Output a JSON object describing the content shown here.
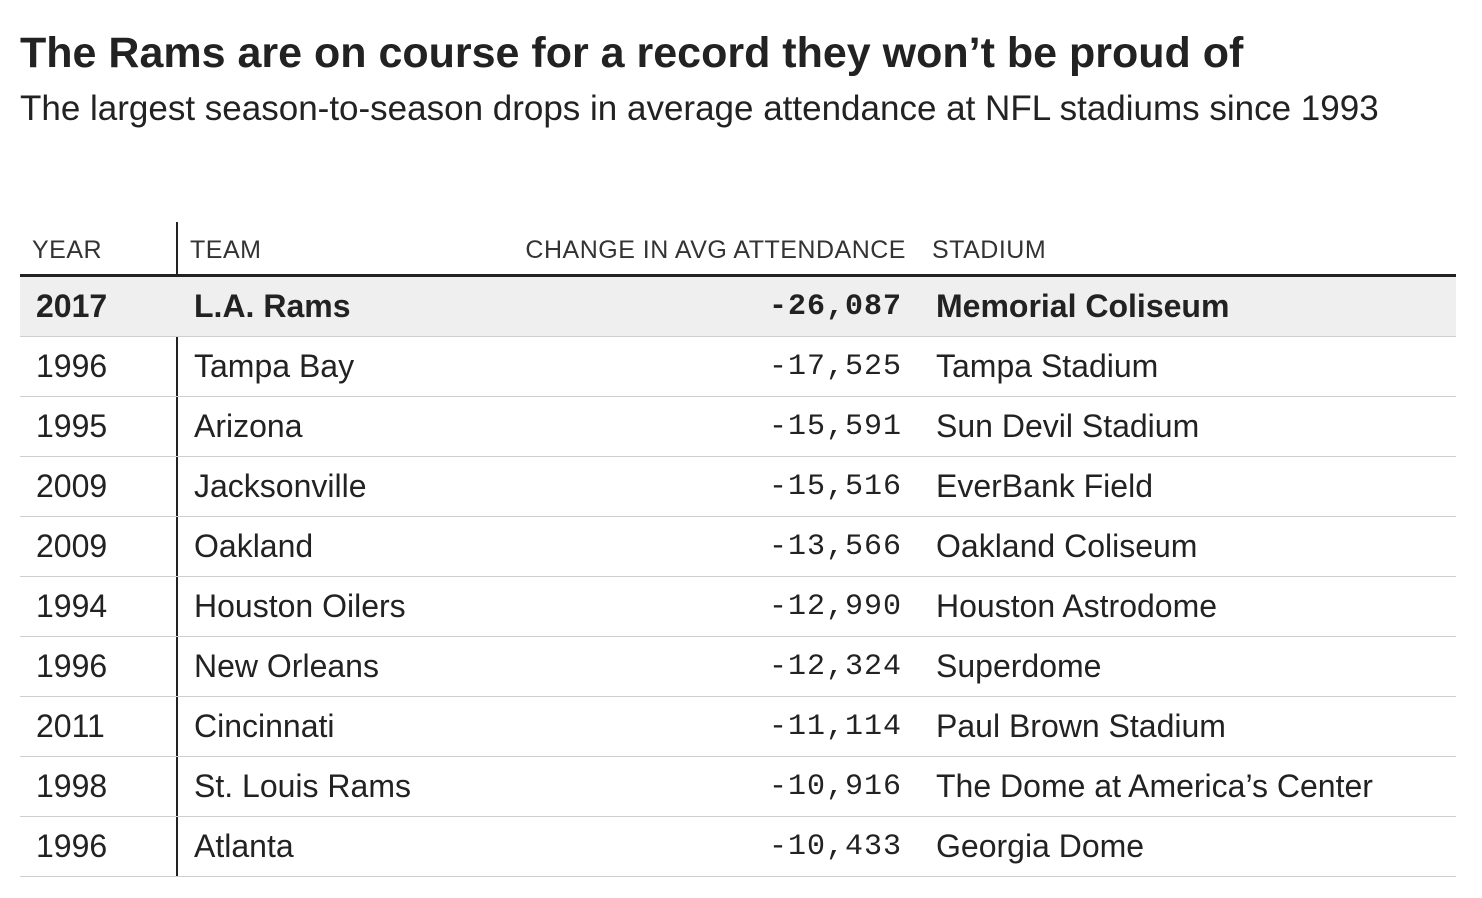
{
  "title": "The Rams are on course for a record they won’t be proud of",
  "subtitle": "The largest season-to-season drops in average attendance at NFL stadiums since 1993",
  "colors": {
    "text": "#222222",
    "highlight_row": "#efefef",
    "rule": "#222222",
    "row_divider": "#cfcfcf"
  },
  "chart_data": {
    "type": "table",
    "columns": [
      "YEAR",
      "TEAM",
      "CHANGE IN AVG ATTENDANCE",
      "STADIUM"
    ],
    "highlighted_row": 0,
    "rows": [
      {
        "year": "2017",
        "team": "L.A. Rams",
        "change": "-26,087",
        "stadium": "Memorial Coliseum"
      },
      {
        "year": "1996",
        "team": "Tampa Bay",
        "change": "-17,525",
        "stadium": "Tampa Stadium"
      },
      {
        "year": "1995",
        "team": "Arizona",
        "change": "-15,591",
        "stadium": "Sun Devil Stadium"
      },
      {
        "year": "2009",
        "team": "Jacksonville",
        "change": "-15,516",
        "stadium": "EverBank Field"
      },
      {
        "year": "2009",
        "team": "Oakland",
        "change": "-13,566",
        "stadium": "Oakland Coliseum"
      },
      {
        "year": "1994",
        "team": "Houston Oilers",
        "change": "-12,990",
        "stadium": "Houston Astrodome"
      },
      {
        "year": "1996",
        "team": "New Orleans",
        "change": "-12,324",
        "stadium": "Superdome"
      },
      {
        "year": "2011",
        "team": "Cincinnati",
        "change": "-11,114",
        "stadium": "Paul Brown Stadium"
      },
      {
        "year": "1998",
        "team": "St. Louis Rams",
        "change": "-10,916",
        "stadium": "The Dome at America’s Center"
      },
      {
        "year": "1996",
        "team": "Atlanta",
        "change": "-10,433",
        "stadium": "Georgia Dome"
      }
    ]
  }
}
